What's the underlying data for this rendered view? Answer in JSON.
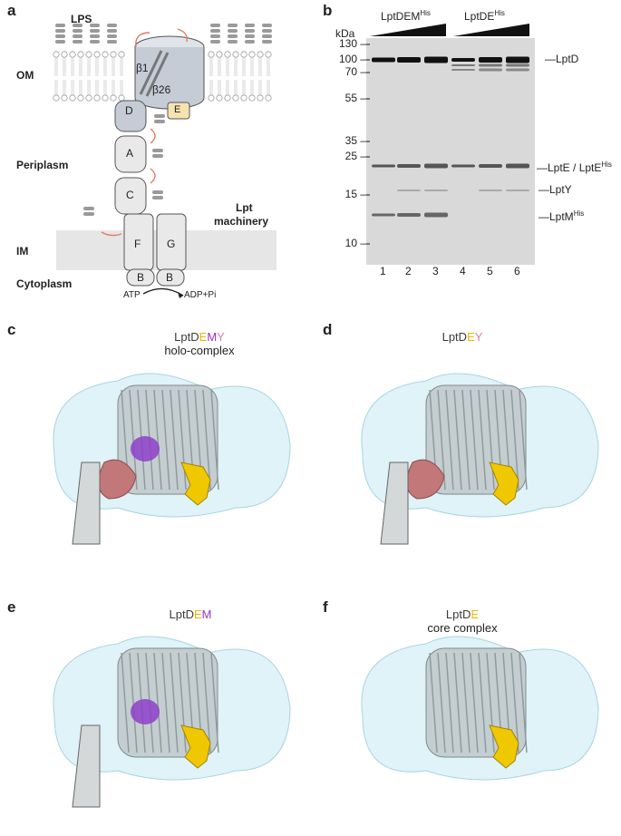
{
  "panel_a": {
    "label": "a",
    "lps": "LPS",
    "om": "OM",
    "periplasm": "Periplasm",
    "im": "IM",
    "cytoplasm": "Cytoplasm",
    "lpt": "Lpt",
    "machinery": "machinery",
    "beta1": "β1",
    "beta26": "β26",
    "boxes": {
      "d": "D",
      "e": "E",
      "a": "A",
      "c": "C",
      "f": "F",
      "g": "G",
      "b1": "B",
      "b2": "B"
    },
    "atp": "ATP",
    "adp": "ADP+Pi",
    "colors": {
      "membrane": "#e6e6e6",
      "protein": "#e9e9e9",
      "lptd": "#c5ccd6",
      "lpte": "#f7e3b0",
      "arrow": "#e07b6a"
    }
  },
  "panel_b": {
    "label": "b",
    "group1": "LptDEM",
    "group1_sup": "His",
    "group2": "LptDE",
    "group2_sup": "His",
    "kda": "kDa",
    "markers": [
      "130",
      "100",
      "70",
      "55",
      "35",
      "25",
      "15",
      "10"
    ],
    "bands": {
      "lptd": "LptD",
      "lpte_a": "LptE / LptE",
      "lpte_sup": "His",
      "lpty": "LptY",
      "lptm": "LptM",
      "lptm_sup": "His"
    },
    "lanes": [
      "1",
      "2",
      "3",
      "4",
      "5",
      "6"
    ]
  },
  "panel_c": {
    "label": "c",
    "t1": "LptD",
    "t2": "E",
    "t3": "M",
    "t4": "Y",
    "sub": "holo-complex"
  },
  "panel_d": {
    "label": "d",
    "t1": "LptD",
    "t2": "E",
    "t3": "Y"
  },
  "panel_e": {
    "label": "e",
    "t1": "LptD",
    "t2": "E",
    "t3": "M"
  },
  "panel_f": {
    "label": "f",
    "t1": "LptD",
    "t2": "E",
    "sub": "core complex"
  },
  "structure_colors": {
    "density": "#d2eef5",
    "lptd": "#c4ced0",
    "lpte": "#f0c800",
    "lptm": "#8e3fc9",
    "lpty": "#c27878"
  }
}
